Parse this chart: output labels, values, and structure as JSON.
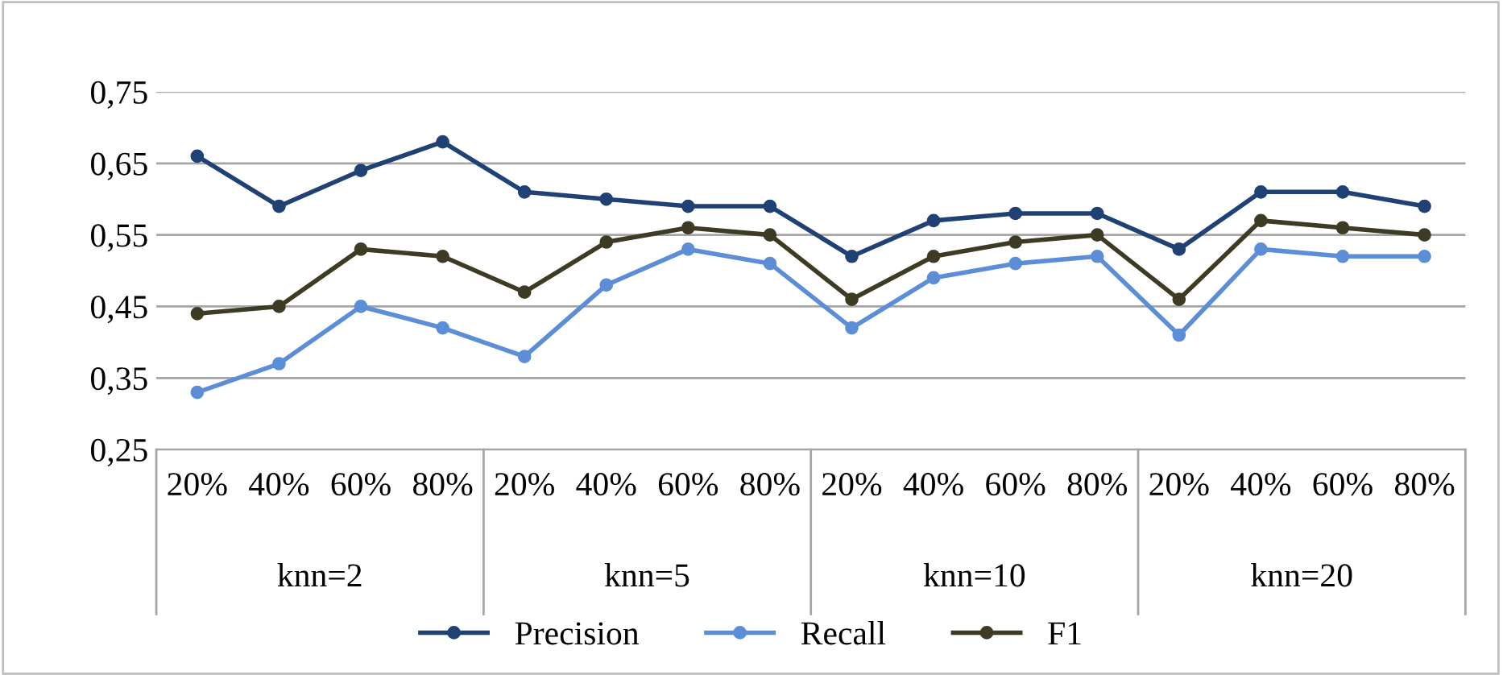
{
  "chart_data": {
    "type": "line",
    "categories": [
      "20%",
      "40%",
      "60%",
      "80%",
      "20%",
      "40%",
      "60%",
      "80%",
      "20%",
      "40%",
      "60%",
      "80%",
      "20%",
      "40%",
      "60%",
      "80%"
    ],
    "annotations": [
      "knn=2",
      "knn=5",
      "knn=10",
      "knn=20"
    ],
    "series": [
      {
        "name": "Precision",
        "color": "#1f4173",
        "values": [
          0.66,
          0.59,
          0.64,
          0.68,
          0.61,
          0.6,
          0.59,
          0.59,
          0.52,
          0.57,
          0.58,
          0.58,
          0.53,
          0.61,
          0.61,
          0.59
        ]
      },
      {
        "name": "Recall",
        "color": "#5b8ed6",
        "values": [
          0.33,
          0.37,
          0.45,
          0.42,
          0.38,
          0.48,
          0.53,
          0.51,
          0.42,
          0.49,
          0.51,
          0.52,
          0.41,
          0.53,
          0.52,
          0.52
        ]
      },
      {
        "name": "F1",
        "color": "#3e3b24",
        "values": [
          0.44,
          0.45,
          0.53,
          0.52,
          0.47,
          0.54,
          0.56,
          0.55,
          0.46,
          0.52,
          0.54,
          0.55,
          0.46,
          0.57,
          0.56,
          0.55
        ]
      }
    ],
    "ylim": [
      0.25,
      0.75
    ],
    "yticks": [
      {
        "value": 0.25,
        "label": "0,25"
      },
      {
        "value": 0.35,
        "label": "0,35"
      },
      {
        "value": 0.45,
        "label": "0,45"
      },
      {
        "value": 0.55,
        "label": "0,55"
      },
      {
        "value": 0.65,
        "label": "0,65"
      },
      {
        "value": 0.75,
        "label": "0,75"
      }
    ],
    "grid": "y",
    "legend": "bottom",
    "marker": "circle",
    "line_style": "solid"
  }
}
